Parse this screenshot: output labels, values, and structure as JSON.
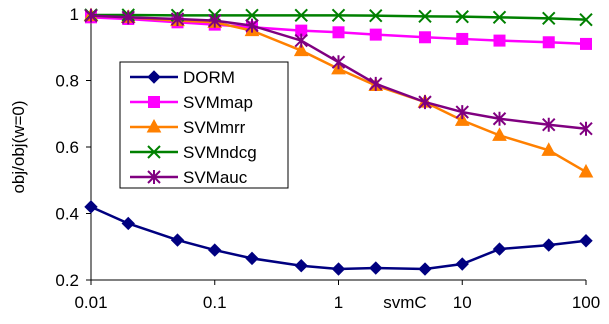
{
  "chart_data": {
    "type": "line",
    "title": "",
    "xlabel": "svmC",
    "ylabel": "obj/obj(w=0)",
    "xscale": "log",
    "xlim": [
      0.01,
      100
    ],
    "ylim": [
      0.2,
      1.0
    ],
    "x_ticks": [
      0.01,
      0.1,
      1,
      10,
      100
    ],
    "x_tick_labels": [
      "0.01",
      "0.1",
      "1",
      "10",
      "100"
    ],
    "y_ticks": [
      0.2,
      0.4,
      0.6,
      0.8,
      1.0
    ],
    "y_tick_labels": [
      "0.2",
      "0.4",
      "0.6",
      "0.8",
      "1"
    ],
    "grid": false,
    "legend_position": "left",
    "x": [
      0.01,
      0.02,
      0.05,
      0.1,
      0.2,
      0.5,
      1,
      2,
      5,
      10,
      20,
      50,
      100
    ],
    "series": [
      {
        "name": "DORM",
        "color": "#000080",
        "marker": "diamond",
        "values": [
          0.42,
          0.37,
          0.32,
          0.29,
          0.265,
          0.243,
          0.233,
          0.236,
          0.233,
          0.248,
          0.293,
          0.305,
          0.318
        ]
      },
      {
        "name": "SVMmap",
        "color": "#FF00FF",
        "marker": "square",
        "values": [
          0.99,
          0.985,
          0.975,
          0.968,
          0.96,
          0.95,
          0.945,
          0.938,
          0.93,
          0.925,
          0.92,
          0.915,
          0.91
        ]
      },
      {
        "name": "SVMmrr",
        "color": "#FF8000",
        "marker": "triangle",
        "values": [
          0.995,
          0.99,
          0.98,
          0.975,
          0.95,
          0.89,
          0.835,
          0.785,
          0.735,
          0.68,
          0.635,
          0.59,
          0.525
        ]
      },
      {
        "name": "SVMndcg",
        "color": "#008000",
        "marker": "x",
        "values": [
          0.997,
          0.997,
          0.996,
          0.996,
          0.996,
          0.996,
          0.996,
          0.995,
          0.993,
          0.992,
          0.99,
          0.987,
          0.983
        ]
      },
      {
        "name": "SVMauc",
        "color": "#800080",
        "marker": "star",
        "values": [
          0.995,
          0.99,
          0.985,
          0.98,
          0.965,
          0.92,
          0.855,
          0.79,
          0.735,
          0.705,
          0.685,
          0.667,
          0.655
        ]
      }
    ]
  }
}
